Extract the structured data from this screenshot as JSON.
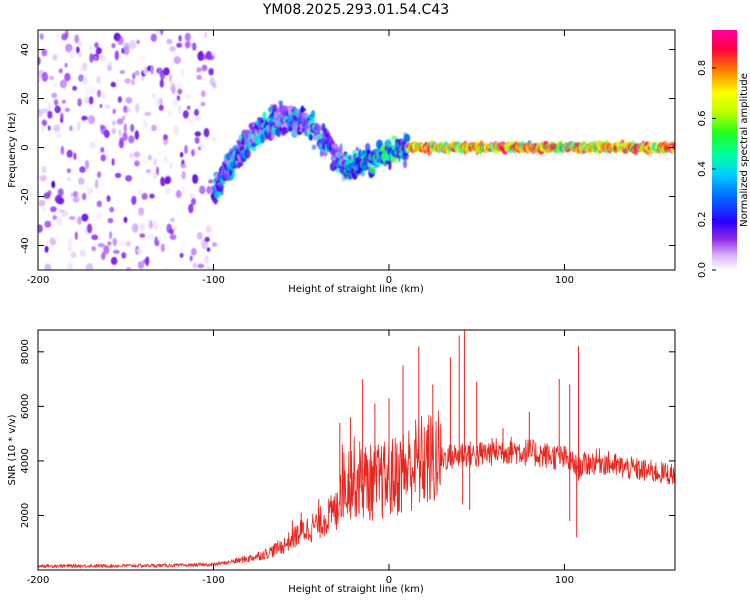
{
  "title": "YM08.2025.293.01.54.C43",
  "colors": {
    "snr_line": "#e8261f",
    "axis": "#000000",
    "colormap": [
      "#ffffff",
      "#e6cfff",
      "#a040ff",
      "#5a00e0",
      "#0010ff",
      "#00a0ff",
      "#00ffd0",
      "#20ff20",
      "#c0ff00",
      "#ffff00",
      "#ff8000",
      "#ff0040",
      "#ff00a0"
    ]
  },
  "chart_data": [
    {
      "type": "heatmap",
      "title": "YM08.2025.293.01.54.C43",
      "xlabel": "Height of straight line (km)",
      "ylabel": "Frequency (Hz)",
      "xlim": [
        -200,
        163
      ],
      "ylim": [
        -50,
        48
      ],
      "xticks": [
        -200,
        -100,
        0,
        100
      ],
      "yticks": [
        -40,
        -20,
        0,
        20,
        40
      ],
      "grid": false,
      "colorbar": {
        "label": "Normalized spectral amplitude",
        "range": [
          0.0,
          0.95
        ],
        "ticks": [
          0.0,
          0.2,
          0.4,
          0.6,
          0.8
        ]
      },
      "regions": [
        {
          "x_range": [
            -200,
            -100
          ],
          "description": "broadband low-amplitude noise",
          "freq_range": [
            -50,
            48
          ],
          "amplitude": [
            0.02,
            0.25
          ]
        },
        {
          "x_range": [
            -100,
            -25
          ],
          "description": "energy emerging, rising arc",
          "freq_center": [
            -15,
            15
          ],
          "amplitude": [
            0.1,
            0.5
          ]
        },
        {
          "x_range": [
            -25,
            10
          ],
          "description": "band narrowing toward 0 Hz",
          "freq_center": [
            -8,
            0
          ],
          "amplitude": [
            0.2,
            0.6
          ]
        },
        {
          "x_range": [
            10,
            163
          ],
          "description": "narrow band centered near 0 Hz",
          "freq_center": [
            0,
            0
          ],
          "amplitude": [
            0.4,
            0.95
          ]
        }
      ]
    },
    {
      "type": "line",
      "xlabel": "Height of straight line (km)",
      "ylabel": "SNR (10 * v/v)",
      "xlim": [
        -200,
        163
      ],
      "ylim": [
        0,
        8800
      ],
      "xticks": [
        -200,
        -100,
        0,
        100
      ],
      "yticks": [
        2000,
        4000,
        6000,
        8000
      ],
      "grid": false,
      "series": [
        {
          "name": "SNR",
          "x": [
            -200,
            -180,
            -160,
            -140,
            -120,
            -100,
            -90,
            -80,
            -70,
            -60,
            -50,
            -40,
            -30,
            -28,
            -20,
            -10,
            0,
            5,
            10,
            15,
            20,
            25,
            30,
            40,
            42,
            45,
            50,
            60,
            70,
            80,
            90,
            95,
            100,
            105,
            108,
            110,
            120,
            130,
            140,
            150,
            163
          ],
          "y": [
            150,
            150,
            150,
            160,
            170,
            200,
            300,
            420,
            600,
            900,
            1400,
            1700,
            2200,
            3200,
            3400,
            3200,
            3300,
            3500,
            3700,
            3900,
            4000,
            4050,
            4100,
            4200,
            4300,
            4250,
            4200,
            4350,
            4400,
            4300,
            4200,
            4150,
            4100,
            3900,
            3700,
            3850,
            4000,
            3800,
            3700,
            3600,
            3500
          ]
        }
      ],
      "spikes": [
        {
          "x": -55,
          "y": 1800
        },
        {
          "x": -50,
          "y": 2100
        },
        {
          "x": -40,
          "y": 2600
        },
        {
          "x": -28,
          "y": 5400
        },
        {
          "x": -22,
          "y": 5600
        },
        {
          "x": -15,
          "y": 7000
        },
        {
          "x": -8,
          "y": 6100
        },
        {
          "x": 0,
          "y": 6300
        },
        {
          "x": 8,
          "y": 7500
        },
        {
          "x": 17,
          "y": 8200
        },
        {
          "x": 25,
          "y": 6800
        },
        {
          "x": 35,
          "y": 7800
        },
        {
          "x": 40,
          "y": 8600
        },
        {
          "x": 43,
          "y": 8800
        },
        {
          "x": 50,
          "y": 6900
        },
        {
          "x": 65,
          "y": 5200
        },
        {
          "x": 80,
          "y": 5800
        },
        {
          "x": 97,
          "y": 7000
        },
        {
          "x": 103,
          "y": 6800
        },
        {
          "x": 108,
          "y": 8200
        }
      ],
      "dips": [
        {
          "x": 42,
          "y": 2400
        },
        {
          "x": 46,
          "y": 2200
        },
        {
          "x": 103,
          "y": 1800
        },
        {
          "x": 107,
          "y": 1200
        }
      ]
    }
  ]
}
